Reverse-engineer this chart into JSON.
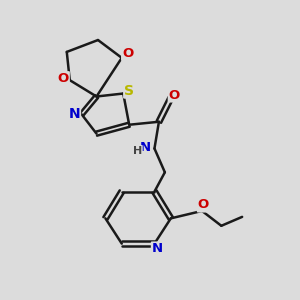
{
  "bg_color": "#dcdcdc",
  "bond_color": "#1a1a1a",
  "bond_width": 1.8,
  "atom_colors": {
    "S": "#b8b800",
    "N": "#0000cc",
    "O": "#cc0000",
    "H": "#444444",
    "C": "#1a1a1a"
  },
  "font_size": 9.5
}
